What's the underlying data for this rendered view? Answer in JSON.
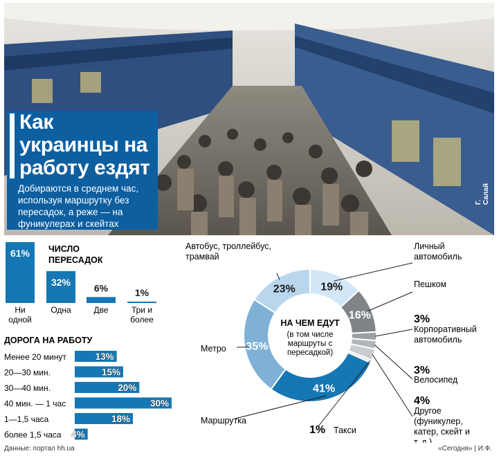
{
  "headline": {
    "title": "Как украинцы на работу ездят",
    "subtitle": "Добираются в среднем час, используя маршрутку без пересадок, а реже — на фуникулерах и скейтах"
  },
  "photo": {
    "credit": "Г. Салай"
  },
  "colors": {
    "primary": "#1577b3",
    "light_blue": "#7fb1d6",
    "lighter_blue": "#b9d6ec",
    "gray": "#7f8489",
    "light_gray": "#c8ccd0",
    "pale_gray": "#dcdfe2"
  },
  "chart_data": [
    {
      "type": "bar",
      "title": "ЧИСЛО ПЕРЕСАДОК",
      "categories": [
        "Ни одной",
        "Одна",
        "Две",
        "Три и более"
      ],
      "values": [
        61,
        32,
        6,
        1
      ],
      "value_labels": [
        "61%",
        "32%",
        "6%",
        "1%"
      ]
    },
    {
      "type": "bar",
      "title": "ДОРОГА НА РАБОТУ",
      "orientation": "horizontal",
      "categories": [
        "Менее 20 минут",
        "20—30 мин.",
        "30—40 мин.",
        "40 мин. — 1 час",
        "1—1,5 часа",
        "более 1,5 часа"
      ],
      "values": [
        13,
        15,
        20,
        30,
        18,
        4
      ],
      "value_labels": [
        "13%",
        "15%",
        "20%",
        "30%",
        "18%",
        "4%"
      ]
    },
    {
      "type": "pie",
      "title": "НА ЧЕМ ЕДУТ",
      "subtitle": "(в том числе маршруты с пересадкой)",
      "categories": [
        "Автобус, троллейбус, трамвай",
        "Личный автомобиль",
        "Пешком",
        "Корпоративный автомобиль",
        "Велосипед",
        "Другое (фуникулер, катер, скейт и т. д.)",
        "Такси",
        "Маршрутка",
        "Метро"
      ],
      "values": [
        23,
        19,
        16,
        3,
        3,
        4,
        1,
        41,
        35
      ],
      "value_labels": [
        "23%",
        "19%",
        "16%",
        "3%",
        "3%",
        "4%",
        "1%",
        "41%",
        "35%"
      ]
    }
  ],
  "footer": {
    "source": "Данные: портал hh.ua",
    "credit": "«Сегодня» | И.Ф."
  }
}
